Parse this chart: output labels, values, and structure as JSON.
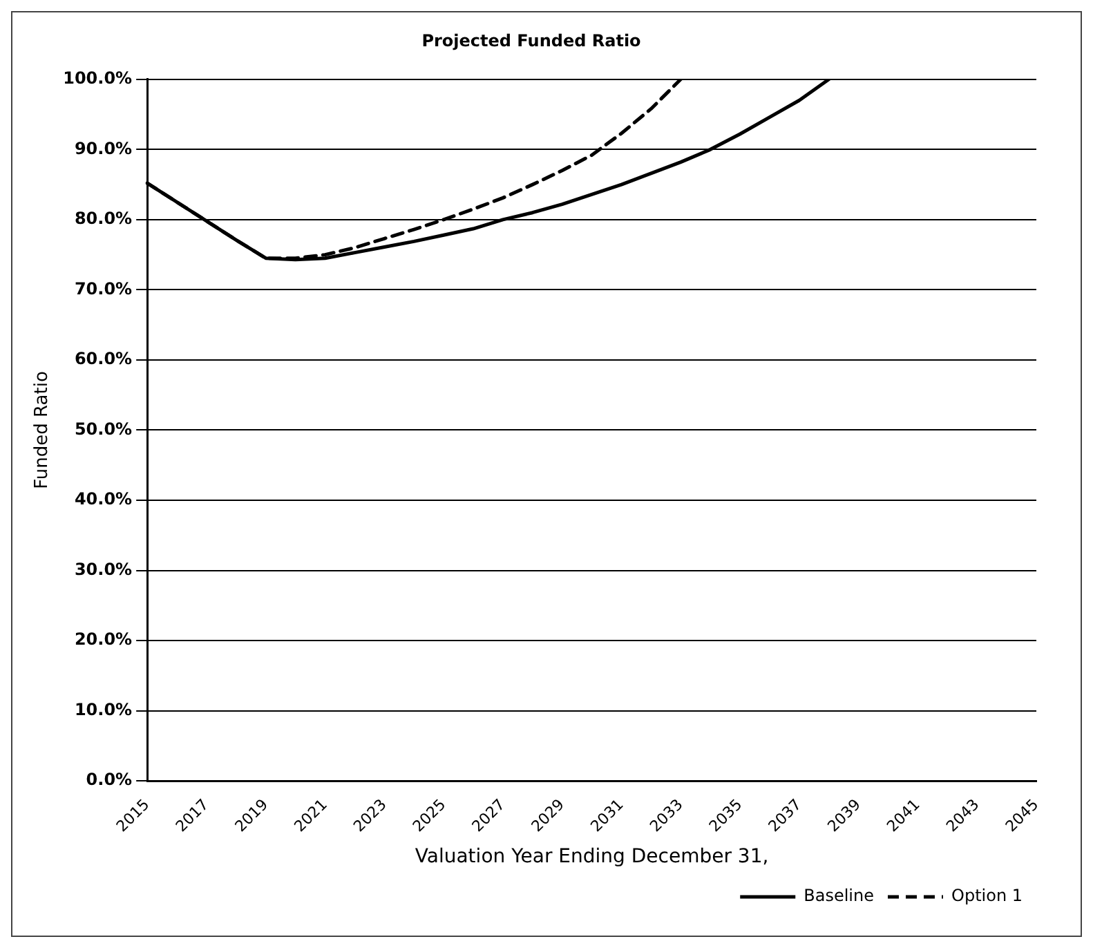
{
  "chart_data": {
    "type": "line",
    "title": "Projected Funded Ratio",
    "xlabel": "Valuation Year Ending December 31,",
    "ylabel": "Funded Ratio",
    "categories": [
      "2015",
      null,
      "2017",
      null,
      "2019",
      null,
      "2021",
      null,
      "2023",
      null,
      "2025",
      null,
      "2027",
      null,
      "2029",
      null,
      "2031",
      null,
      "2033",
      null,
      "2035",
      null,
      "2037",
      null,
      "2039",
      null,
      "2041",
      null,
      "2043",
      null,
      "2045"
    ],
    "series": [
      {
        "name": "Baseline",
        "color": "#000000",
        "line_style": "solid",
        "values": [
          85.2,
          82.5,
          79.8,
          77.1,
          74.5,
          74.3,
          74.5,
          75.3,
          76.1,
          76.9,
          77.8,
          78.7,
          80.0,
          81.0,
          82.2,
          83.6,
          85.0,
          86.6,
          88.2,
          90.0,
          92.2,
          94.6,
          97.0,
          100.0,
          null,
          null,
          null,
          null,
          null,
          null,
          null
        ]
      },
      {
        "name": "Option 1",
        "color": "#000000",
        "line_style": "dashed",
        "values": [
          85.2,
          82.5,
          79.8,
          77.1,
          74.5,
          74.5,
          75.0,
          76.0,
          77.3,
          78.6,
          80.0,
          81.5,
          83.1,
          85.0,
          87.0,
          89.2,
          92.3,
          95.8,
          100.0,
          null,
          null,
          null,
          null,
          null,
          null,
          null,
          null,
          null,
          null,
          null,
          null
        ]
      }
    ],
    "ylim": [
      0,
      100
    ],
    "yticks": [
      {
        "value": 0,
        "label": "0.0%"
      },
      {
        "value": 10,
        "label": "10.0%"
      },
      {
        "value": 20,
        "label": "20.0%"
      },
      {
        "value": 30,
        "label": "30.0%"
      },
      {
        "value": 40,
        "label": "40.0%"
      },
      {
        "value": 50,
        "label": "50.0%"
      },
      {
        "value": 60,
        "label": "60.0%"
      },
      {
        "value": 70,
        "label": "70.0%"
      },
      {
        "value": 80,
        "label": "80.0%"
      },
      {
        "value": 90,
        "label": "90.0%"
      },
      {
        "value": 100,
        "label": "100.0%"
      }
    ],
    "grid": "y",
    "legend": "bottom right",
    "marker": "none"
  }
}
